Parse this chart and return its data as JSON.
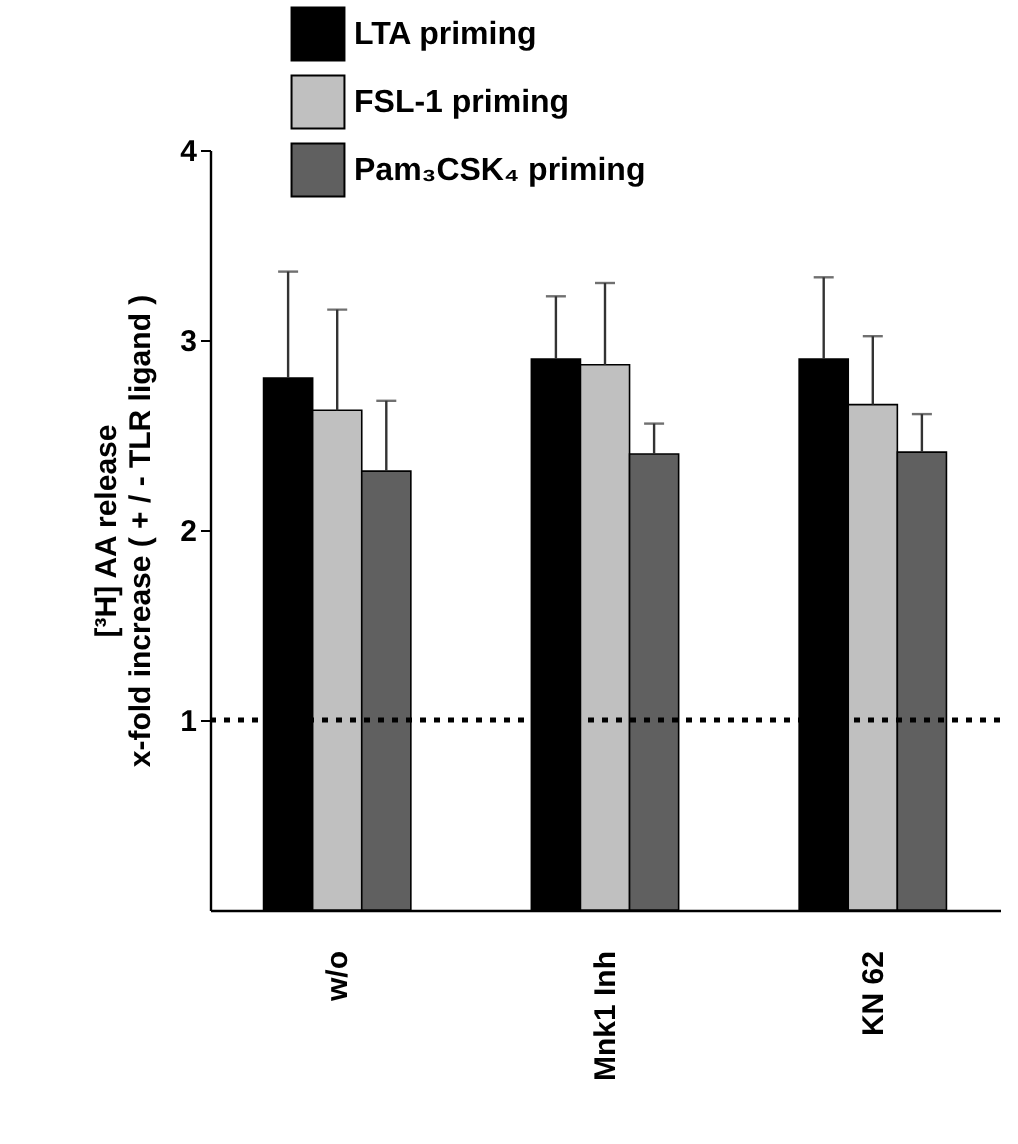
{
  "chart_data": {
    "type": "bar",
    "ylabel": [
      "[³H] AA release",
      "x-fold increase ( + / - TLR ligand )"
    ],
    "categories": [
      "w/o",
      "Mnk1 Inh",
      "KN 62"
    ],
    "series": [
      {
        "name": "LTA priming",
        "color": "#000000",
        "values": [
          2.8,
          2.9,
          2.9
        ],
        "errors": [
          [
            2.8,
            3.36
          ],
          [
            2.9,
            3.23
          ],
          [
            2.9,
            3.33
          ]
        ]
      },
      {
        "name": "FSL-1 priming",
        "color": "#c0c0c0",
        "values": [
          2.63,
          2.87,
          2.66
        ],
        "errors": [
          [
            2.63,
            3.16
          ],
          [
            2.87,
            3.3
          ],
          [
            2.66,
            3.02
          ]
        ]
      },
      {
        "name": "Pam₃CSK₄ priming",
        "color": "#606060",
        "values": [
          2.31,
          2.4,
          2.41
        ],
        "errors": [
          [
            2.31,
            2.68
          ],
          [
            2.4,
            2.56
          ],
          [
            2.41,
            2.61
          ]
        ]
      }
    ],
    "ylim": [
      0,
      4
    ],
    "yticks": [
      1,
      2,
      3,
      4
    ],
    "ref_lines": [
      {
        "axis": "y",
        "value": 1,
        "color": "#000000",
        "line_style": "dotted"
      }
    ],
    "legend": "top left",
    "grid": false
  }
}
